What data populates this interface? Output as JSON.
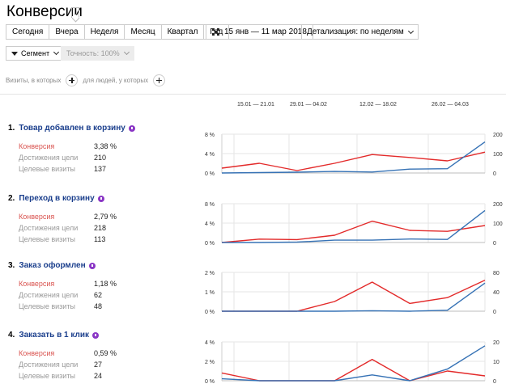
{
  "header": {
    "title": "Конверсии"
  },
  "periods": [
    "Сегодня",
    "Вчера",
    "Неделя",
    "Месяц",
    "Квартал",
    "Год"
  ],
  "date_range": "15 янв — 11 мар 2018",
  "detail": "Детализация: по неделям",
  "segment": "Сегмент",
  "accuracy": "Точность: 100%",
  "seg_visits_label": "Визиты, в которых",
  "seg_people_label": "для людей, у которых",
  "axis_periods": [
    "15.01 — 21.01",
    "29.01 — 04.02",
    "12.02 — 18.02",
    "26.02 — 04.03"
  ],
  "colors": {
    "conversion": "#e32a2a",
    "visits": "#3672b5",
    "link": "#1a3e8c",
    "badge": "#8a36c5"
  },
  "goals": [
    {
      "num": "1.",
      "name": "Товар добавлен в корзину",
      "icon": "info-icon",
      "metrics": {
        "conv_label": "Конверсия",
        "conv_value": "3,38 %",
        "reach_label": "Достижения цели",
        "reach_value": "210",
        "visits_label": "Целевые визиты",
        "visits_value": "137"
      }
    },
    {
      "num": "2.",
      "name": "Переход в корзину",
      "icon": "goal-type-icon",
      "metrics": {
        "conv_label": "Конверсия",
        "conv_value": "2,79 %",
        "reach_label": "Достижения цели",
        "reach_value": "218",
        "visits_label": "Целевые визиты",
        "visits_value": "113"
      }
    },
    {
      "num": "3.",
      "name": "Заказ оформлен",
      "icon": "goal-type-icon",
      "metrics": {
        "conv_label": "Конверсия",
        "conv_value": "1,18 %",
        "reach_label": "Достижения цели",
        "reach_value": "62",
        "visits_label": "Целевые визиты",
        "visits_value": "48"
      }
    },
    {
      "num": "4.",
      "name": "Заказать в 1 клик",
      "icon": "info-icon",
      "metrics": {
        "conv_label": "Конверсия",
        "conv_value": "0,59 %",
        "reach_label": "Достижения цели",
        "reach_value": "27",
        "visits_label": "Целевые визиты",
        "visits_value": "24"
      }
    }
  ],
  "chart_data": [
    {
      "type": "line",
      "left_ticks": [
        "8 %",
        "4 %",
        "0 %"
      ],
      "right_ticks": [
        "200",
        "100",
        "0"
      ],
      "ylim_left": [
        0,
        8
      ],
      "ylim_right": [
        0,
        200
      ],
      "series": [
        {
          "values": [
            1.0,
            2.0,
            0.5,
            2.0,
            3.8,
            3.2,
            2.5,
            4.3
          ]
        },
        {
          "values": [
            0,
            2,
            4,
            8,
            5,
            20,
            22,
            160
          ],
          "axis": "right"
        }
      ]
    },
    {
      "type": "line",
      "left_ticks": [
        "8 %",
        "4 %",
        "0 %"
      ],
      "right_ticks": [
        "200",
        "100",
        "0"
      ],
      "ylim_left": [
        0,
        8
      ],
      "ylim_right": [
        0,
        200
      ],
      "series": [
        {
          "values": [
            0,
            0.7,
            0.6,
            1.5,
            4.4,
            2.5,
            2.3,
            3.5
          ]
        },
        {
          "values": [
            0,
            0,
            2,
            12,
            12,
            18,
            16,
            165
          ],
          "axis": "right"
        }
      ]
    },
    {
      "type": "line",
      "left_ticks": [
        "2 %",
        "1 %",
        "0 %"
      ],
      "right_ticks": [
        "80",
        "40",
        "0"
      ],
      "ylim_left": [
        0,
        2
      ],
      "ylim_right": [
        0,
        80
      ],
      "series": [
        {
          "values": [
            0,
            0,
            0,
            0.5,
            1.5,
            0.4,
            0.7,
            1.6
          ]
        },
        {
          "values": [
            0,
            0,
            0,
            0,
            1,
            0,
            2,
            58
          ],
          "axis": "right"
        }
      ]
    },
    {
      "type": "line",
      "left_ticks": [
        "4 %",
        "2 %",
        "0 %"
      ],
      "right_ticks": [
        "20",
        "10",
        "0"
      ],
      "ylim_left": [
        0,
        4
      ],
      "ylim_right": [
        0,
        20
      ],
      "series": [
        {
          "values": [
            0.8,
            0,
            0,
            0,
            2.2,
            0,
            1.0,
            0.5
          ]
        },
        {
          "values": [
            1,
            0,
            0,
            0,
            3,
            0,
            6,
            18
          ],
          "axis": "right"
        }
      ]
    }
  ]
}
